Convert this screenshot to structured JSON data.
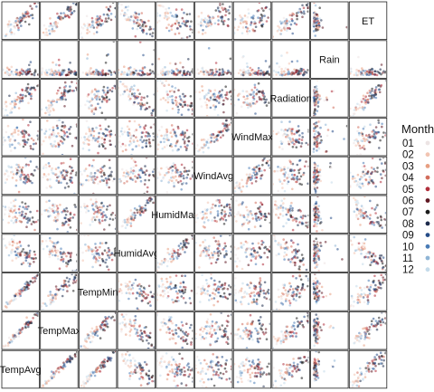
{
  "chart_data": {
    "type": "scatter",
    "variables": [
      "ET",
      "Rain",
      "Radiation",
      "WindMax",
      "WindAvg",
      "HumidMax",
      "HumidAvg",
      "TempMin",
      "TempMax",
      "TempAvg"
    ],
    "legend": {
      "title": "Month",
      "placement": "right",
      "entries": [
        {
          "label": "01",
          "color": "#ece4e4"
        },
        {
          "label": "02",
          "color": "#f2c4b2"
        },
        {
          "label": "03",
          "color": "#e79f82"
        },
        {
          "label": "04",
          "color": "#d26d5c"
        },
        {
          "label": "05",
          "color": "#b12f3c"
        },
        {
          "label": "06",
          "color": "#5f1822"
        },
        {
          "label": "07",
          "color": "#1b1b1b"
        },
        {
          "label": "08",
          "color": "#1d2b4c"
        },
        {
          "label": "09",
          "color": "#264d88"
        },
        {
          "label": "10",
          "color": "#4a7cb6"
        },
        {
          "label": "11",
          "color": "#8fb5d6"
        },
        {
          "label": "12",
          "color": "#c4dbea"
        }
      ]
    },
    "grid": false,
    "axes_ticks": false,
    "panel_relationships": {
      "TempAvg|TempMax": 0.97,
      "TempAvg|TempMin": 0.95,
      "TempMax|TempMin": 0.85,
      "TempAvg|HumidAvg": -0.55,
      "TempMax|HumidAvg": -0.6,
      "TempMin|HumidAvg": -0.35,
      "HumidMax|HumidAvg": 0.85,
      "TempAvg|HumidMax": -0.3,
      "TempMax|HumidMax": -0.35,
      "TempMin|HumidMax": -0.2,
      "WindAvg|WindMax": 0.8,
      "Radiation|TempAvg": 0.7,
      "Radiation|TempMax": 0.75,
      "Radiation|TempMin": 0.55,
      "Radiation|HumidAvg": -0.6,
      "Radiation|HumidMax": -0.4,
      "ET|TempAvg": 0.8,
      "ET|TempMax": 0.82,
      "ET|TempMin": 0.65,
      "ET|HumidAvg": -0.7,
      "ET|HumidMax": -0.45,
      "ET|Radiation": 0.85,
      "ET|WindAvg": 0.35,
      "ET|WindMax": 0.3,
      "Rain|ET": -0.2,
      "Rain|Radiation": -0.25,
      "Rain|HumidAvg": 0.25,
      "Rain|HumidMax": 0.2
    }
  }
}
